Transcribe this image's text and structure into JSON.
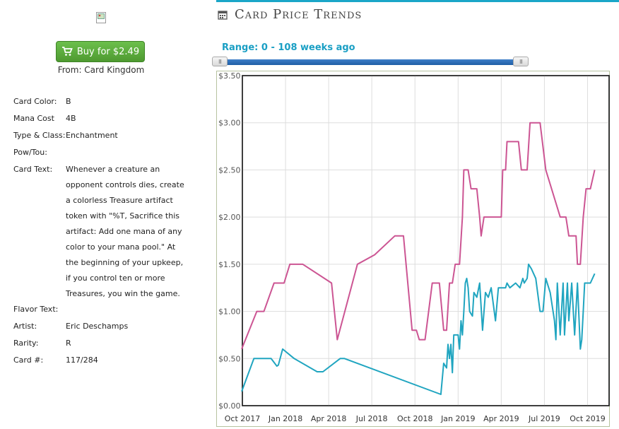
{
  "buy": {
    "label": "Buy for $2.49",
    "from": "From: Card Kingdom"
  },
  "card": [
    {
      "key": "Card Color:",
      "value": "B"
    },
    {
      "key": "Mana Cost",
      "value": "4B"
    },
    {
      "key": "Type & Class:",
      "value": "Enchantment"
    },
    {
      "key": "Pow/Tou:",
      "value": ""
    },
    {
      "key": "Card Text:",
      "value": "Whenever a creature an opponent controls dies, create a colorless Treasure artifact token with \"%T, Sacrifice this artifact: Add one mana of any color to your mana pool.\" At the beginning of your upkeep, if you control ten or more Treasures, you win the game."
    },
    {
      "key": "Flavor Text:",
      "value": ""
    },
    {
      "key": "Artist:",
      "value": "Eric Deschamps"
    },
    {
      "key": "Rarity:",
      "value": "R"
    },
    {
      "key": "Card #:",
      "value": "117/284"
    }
  ],
  "section_title": "Card Price Trends",
  "range_label": "Range: 0 - 108 weeks ago",
  "range_weeks": [
    0,
    108
  ],
  "colors": {
    "pink": "#cc5593",
    "teal": "#20a5c0",
    "accent": "#1aa6c8",
    "button": "#5cb33d"
  },
  "icons": {
    "cart": "shopping-cart-icon",
    "calendar": "calendar-icon"
  },
  "chart_data": {
    "type": "line",
    "x_ticks": [
      "Oct 2017",
      "Jan 2018",
      "Apr 2018",
      "Jul 2018",
      "Oct 2018",
      "Jan 2019",
      "Apr 2019",
      "Jul 2019",
      "Oct 2019"
    ],
    "y_ticks": [
      "$0.00",
      "$0.50",
      "$1.00",
      "$1.50",
      "$2.00",
      "$2.50",
      "$3.00",
      "$3.50"
    ],
    "ylim": [
      0,
      3.5
    ],
    "xlim": [
      0,
      25.5
    ],
    "x_unit_note": "",
    "series": [
      {
        "color": "#cc5593",
        "points": [
          [
            -0.05,
            0.6
          ],
          [
            1,
            1.0
          ],
          [
            1.5,
            1.0
          ],
          [
            2.2,
            1.3
          ],
          [
            2.9,
            1.3
          ],
          [
            3.3,
            1.5
          ],
          [
            4.2,
            1.5
          ],
          [
            6.2,
            1.3
          ],
          [
            6.6,
            0.7
          ],
          [
            8,
            1.5
          ],
          [
            9.2,
            1.6
          ],
          [
            10.6,
            1.8
          ],
          [
            11.2,
            1.8
          ],
          [
            11.8,
            0.8
          ],
          [
            12.1,
            0.8
          ],
          [
            12.3,
            0.7
          ],
          [
            12.7,
            0.7
          ],
          [
            13.2,
            1.3
          ],
          [
            13.7,
            1.3
          ],
          [
            14,
            0.8
          ],
          [
            14.2,
            0.8
          ],
          [
            14.4,
            1.3
          ],
          [
            14.6,
            1.3
          ],
          [
            14.8,
            1.5
          ],
          [
            15.1,
            1.5
          ],
          [
            15.3,
            2.0
          ],
          [
            15.4,
            2.5
          ],
          [
            15.7,
            2.5
          ],
          [
            15.9,
            2.3
          ],
          [
            16.3,
            2.3
          ],
          [
            16.5,
            2.0
          ],
          [
            16.6,
            1.8
          ],
          [
            16.8,
            2.0
          ],
          [
            18,
            2.0
          ],
          [
            18.1,
            2.5
          ],
          [
            18.3,
            2.5
          ],
          [
            18.4,
            2.8
          ],
          [
            19.2,
            2.8
          ],
          [
            19.4,
            2.5
          ],
          [
            19.8,
            2.5
          ],
          [
            20,
            3.0
          ],
          [
            20.7,
            3.0
          ],
          [
            21.1,
            2.5
          ],
          [
            22.1,
            2.0
          ],
          [
            22.5,
            2.0
          ],
          [
            22.7,
            1.8
          ],
          [
            23.2,
            1.8
          ],
          [
            23.3,
            1.5
          ],
          [
            23.5,
            1.5
          ],
          [
            23.7,
            2.0
          ],
          [
            23.9,
            2.3
          ],
          [
            24.2,
            2.3
          ],
          [
            24.5,
            2.5
          ]
        ]
      },
      {
        "color": "#20a5c0",
        "points": [
          [
            -0.05,
            0.15
          ],
          [
            0.8,
            0.5
          ],
          [
            2.0,
            0.5
          ],
          [
            2.4,
            0.42
          ],
          [
            2.5,
            0.43
          ],
          [
            2.8,
            0.6
          ],
          [
            3.6,
            0.5
          ],
          [
            5.2,
            0.36
          ],
          [
            5.6,
            0.36
          ],
          [
            6.8,
            0.5
          ],
          [
            7.1,
            0.5
          ],
          [
            13.8,
            0.12
          ],
          [
            14.0,
            0.45
          ],
          [
            14.2,
            0.4
          ],
          [
            14.3,
            0.65
          ],
          [
            14.4,
            0.5
          ],
          [
            14.5,
            0.65
          ],
          [
            14.6,
            0.35
          ],
          [
            14.7,
            0.75
          ],
          [
            15.0,
            0.75
          ],
          [
            15.1,
            0.6
          ],
          [
            15.2,
            0.9
          ],
          [
            15.3,
            0.75
          ],
          [
            15.4,
            1.0
          ],
          [
            15.5,
            1.3
          ],
          [
            15.6,
            1.35
          ],
          [
            15.7,
            1.25
          ],
          [
            15.8,
            1.0
          ],
          [
            16.0,
            0.95
          ],
          [
            16.1,
            1.2
          ],
          [
            16.3,
            1.15
          ],
          [
            16.5,
            1.3
          ],
          [
            16.7,
            0.8
          ],
          [
            16.9,
            1.2
          ],
          [
            17.1,
            1.15
          ],
          [
            17.3,
            1.25
          ],
          [
            17.6,
            0.9
          ],
          [
            17.8,
            1.25
          ],
          [
            18.3,
            1.25
          ],
          [
            18.4,
            1.3
          ],
          [
            18.6,
            1.25
          ],
          [
            19.0,
            1.3
          ],
          [
            19.3,
            1.25
          ],
          [
            19.5,
            1.35
          ],
          [
            19.6,
            1.3
          ],
          [
            19.8,
            1.35
          ],
          [
            19.9,
            1.5
          ],
          [
            20.1,
            1.45
          ],
          [
            20.4,
            1.35
          ],
          [
            20.7,
            1.0
          ],
          [
            20.9,
            1.0
          ],
          [
            21.1,
            1.35
          ],
          [
            21.4,
            1.2
          ],
          [
            21.7,
            0.9
          ],
          [
            21.8,
            0.7
          ],
          [
            21.9,
            1.3
          ],
          [
            22.1,
            0.75
          ],
          [
            22.3,
            1.3
          ],
          [
            22.4,
            0.75
          ],
          [
            22.6,
            1.3
          ],
          [
            22.7,
            0.9
          ],
          [
            22.9,
            1.3
          ],
          [
            23.1,
            0.75
          ],
          [
            23.3,
            1.3
          ],
          [
            23.5,
            0.6
          ],
          [
            23.6,
            0.7
          ],
          [
            23.7,
            1.0
          ],
          [
            23.8,
            1.3
          ],
          [
            24.2,
            1.3
          ],
          [
            24.5,
            1.4
          ]
        ]
      }
    ]
  }
}
